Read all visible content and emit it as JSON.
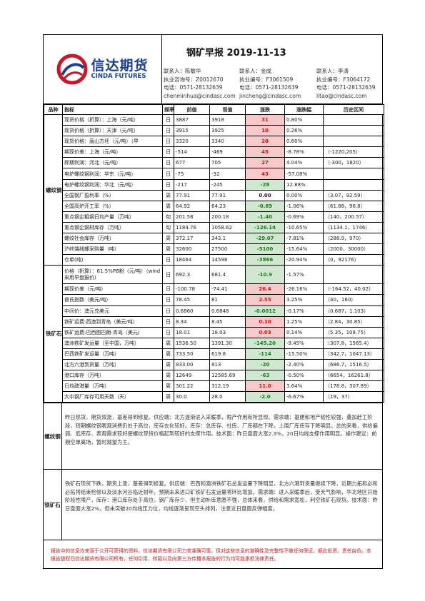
{
  "header": {
    "title": "钢矿早报 2019-11-13",
    "logo_cn": "信达期货",
    "logo_en": "CINDA FUTURES",
    "contacts": [
      {
        "name": "联系人：陈敏华",
        "license": "执业咨询号：Z0012670",
        "phone": "电话：0571-28132639",
        "email": "chenminhua@cindasc.com"
      },
      {
        "name": "联系人：金成",
        "license": "执业编号：F3061509",
        "phone": "电话：0571-28132639",
        "email": "jincheng@cindasc.com"
      },
      {
        "name": "联系人：李涛",
        "license": "执业编号：F3064172",
        "phone": "电话：0571-28132639",
        "email": "litao@cindasc.com"
      }
    ]
  },
  "table": {
    "headers": [
      "品种",
      "指标",
      "频率",
      "前值",
      "现值",
      "涨跌",
      "涨跌幅",
      "历史区间"
    ],
    "groups": [
      {
        "category": "螺纹钢",
        "rows": [
          {
            "indicator": "现货价格（折算）：上海（元/吨）",
            "freq": "日",
            "prev": "3887",
            "cur": "3918",
            "chg": "31",
            "pct": "0.80%",
            "range": "",
            "dir": "up"
          },
          {
            "indicator": "现货价格（折算）：天津（元/吨）",
            "freq": "日",
            "prev": "3915",
            "cur": "3925",
            "chg": "10",
            "pct": "0.26%",
            "range": "",
            "dir": "up"
          },
          {
            "indicator": "现货价格：唐山方坯（元/吨）（早",
            "freq": "日",
            "prev": "3320",
            "cur": "3340",
            "chg": "20",
            "pct": "0.60%",
            "range": "",
            "dir": "up"
          },
          {
            "indicator": "期现价差：上海（元/吨）",
            "freq": "日",
            "prev": "-514",
            "cur": "-469",
            "chg": "45",
            "pct": "-8.78%",
            "range": "（-1220,205）",
            "dir": "up"
          },
          {
            "indicator": "即期利润：河北（元/吨）",
            "freq": "日",
            "prev": "677",
            "cur": "705",
            "chg": "27",
            "pct": "4.04%",
            "range": "（-300，1820）",
            "dir": "up"
          },
          {
            "indicator": "电炉螺纹钢利润：华东（元/吨）",
            "freq": "日",
            "prev": "-75",
            "cur": "-32",
            "chg": "43",
            "pct": "-57.08%",
            "range": "",
            "dir": "up"
          },
          {
            "indicator": "电炉螺纹钢利润：华北（元/吨）",
            "freq": "日",
            "prev": "-217",
            "cur": "-245",
            "chg": "-28",
            "pct": "12.88%",
            "range": "",
            "dir": "down"
          },
          {
            "indicator": "全国钢厂盈利率（%）",
            "freq": "周",
            "prev": "77.91",
            "cur": "77.91",
            "chg": "0.00",
            "pct": "0.00%",
            "range": "（3.07，92.59）",
            "dir": "flat"
          },
          {
            "indicator": "全国高炉开工率（%）",
            "freq": "周",
            "prev": "64.92",
            "cur": "64.23",
            "chg": "-0.69",
            "pct": "-1.06%",
            "range": "（61.88，96.8）",
            "dir": "down"
          },
          {
            "indicator": "重点钢企粗钢日均产量（万吨）",
            "freq": "旬",
            "prev": "201.58",
            "cur": "200.18",
            "chg": "-1.40",
            "pct": "-0.69%",
            "range": "（140，200.57）",
            "dir": "down"
          },
          {
            "indicator": "重点钢企钢材库存（万吨）",
            "freq": "旬",
            "prev": "1184.76",
            "cur": "1058.62",
            "chg": "-126.14",
            "pct": "-10.65%",
            "range": "（1134.1，1746）",
            "dir": "down"
          },
          {
            "indicator": "螺纹社会库存（万吨）",
            "freq": "周",
            "prev": "372.17",
            "cur": "343.1",
            "chg": "-29.07",
            "pct": "-7.81%",
            "range": "（288.9，970）",
            "dir": "down"
          },
          {
            "indicator": "沪终端线螺采购量（吨）",
            "freq": "周",
            "prev": "32600",
            "cur": "27500",
            "chg": "-5100",
            "pct": "-15.64%",
            "range": "（2000，30000）",
            "dir": "down"
          },
          {
            "indicator": "仓单(吨)",
            "freq": "日",
            "prev": "18464",
            "cur": "14598",
            "chg": "-3866",
            "pct": "-20.94%",
            "range": "（0，92176）",
            "dir": "down"
          }
        ]
      },
      {
        "category": "铁矿石",
        "rows": [
          {
            "indicator": "价格（折算）：61.5%PB粉（元/吨）（wind采用早盘报价）",
            "freq": "日",
            "prev": "692.3",
            "cur": "681.4",
            "chg": "-10.9",
            "pct": "-1.57%",
            "range": "",
            "dir": "down",
            "tall": true
          },
          {
            "indicator": "期现价差（元/吨）",
            "freq": "日",
            "prev": "-100.78",
            "cur": "-74.41",
            "chg": "26.4",
            "pct": "-26.16%",
            "range": "（-164.52，40.02）",
            "dir": "up"
          },
          {
            "indicator": "普氏指数（美元/吨）",
            "freq": "日",
            "prev": "78.45",
            "cur": "81",
            "chg": "2.55",
            "pct": "3.25%",
            "range": "（40，160）",
            "dir": "up"
          },
          {
            "indicator": "中间价：澳元兑美元",
            "freq": "日",
            "prev": "0.6860",
            "cur": "0.6848",
            "chg": "-0.0012",
            "pct": "-0.17%",
            "range": "（0.687，1.103）",
            "dir": "down"
          },
          {
            "indicator": "铁矿运费:西澳到青岛（美元/吨）",
            "freq": "日",
            "prev": "8.34",
            "cur": "8.45",
            "chg": "0.10",
            "pct": "1.25%",
            "range": "（2.84，30.85）",
            "dir": "up"
          },
          {
            "indicator": "铁矿运费:巴西图巴朗-青岛（美元/",
            "freq": "日",
            "prev": "18.01",
            "cur": "18.03",
            "chg": "0.03",
            "pct": "0.14%",
            "range": "（5.35，108.75）",
            "dir": "up"
          },
          {
            "indicator": "澳洲铁矿发运量（至中国，万吨）",
            "freq": "周",
            "prev": "1536.50",
            "cur": "1391.30",
            "chg": "-145.20",
            "pct": "-9.45%",
            "range": "（307.8，1565.4）",
            "dir": "down"
          },
          {
            "indicator": "巴西铁矿发运量（万吨）",
            "freq": "周",
            "prev": "733.50",
            "cur": "619.8",
            "chg": "-114",
            "pct": "-15.50%",
            "range": "（342.7，1047.13）",
            "dir": "down"
          },
          {
            "indicator": "北方六港到货量（万吨）",
            "freq": "周",
            "prev": "833.00",
            "cur": "813",
            "chg": "-20",
            "pct": "-2.40%",
            "range": "（686.7，1516.5）",
            "dir": "down"
          },
          {
            "indicator": "港口库存（万吨）",
            "freq": "周",
            "prev": "12649",
            "cur": "12585.69",
            "chg": "-63",
            "pct": "-0.50%",
            "range": "（6654，16261.8）",
            "dir": "down"
          },
          {
            "indicator": "日均疏港量（万吨）",
            "freq": "周",
            "prev": "301.22",
            "cur": "312.19",
            "chg": "11.0",
            "pct": "3.64%",
            "range": "（178.8，307.89）",
            "dir": "up"
          },
          {
            "indicator": "大中钢厂库存可用天数（天）",
            "freq": "周",
            "prev": "30.0",
            "cur": "28.0",
            "chg": "-2.0",
            "pct": "-6.67%",
            "range": "（19，37）",
            "dir": "down"
          }
        ]
      }
    ]
  },
  "commentary": [
    {
      "category": "螺纹钢",
      "text": "昨日现货、期货双涨，基差得到修复。供应端：北方逐渐进入采暖季，限产作用有所显现。需求端：基建和地产韧性较强，叠加赶工阶段，短期螺纹钢表观消费仍处于高位，库存去化较好。库存：总库存、社库、厂库都在下降，上周厂库库存下降明显。总的来看，供给偏弱、低库存、表观需求较好使螺纹现货价格起到较好的支撑作用。技术面：昨日盘面大涨2.3%，20日均线支撑作用明显。操作建议：前期空单离场，暂时观望为主。"
    },
    {
      "category": "铁矿石",
      "text": "铁矿石现货下跌，期货上涨，基差得到修复。供应端：巴西和澳洲铁矿石总发运量下降明显，北方六港到货量继续下降，近期力拓和必和必拓将结束检修以及淡水河谷临近财年，预期未来进口矿铁矿石发运量将环比增加。需求端：进入采暖季后，受天气影响，华北地区开始阶段性限产，库存：港口库存处于高位，钢厂库存少，但主动补库意愿不强，总体来看，供给和需求宽松，利空铁矿石现货。技术面：昨日盘面大涨2%，但未突破20均线压力位，均线逐渐呈现空头排列，注意近日盘面反弹幅度。"
    }
  ],
  "disclaimer": "报告中的信息均来源于公开可获得的资料，信达期货有限公司力求准确可靠，但对这些信息的准确性及完整性不做任何保证，据此投资，责任自负。本报告版权归信达期货有限公司所有，任何引用、转载以及向第三方传播本报告的行为均可能承担法律责任。"
}
